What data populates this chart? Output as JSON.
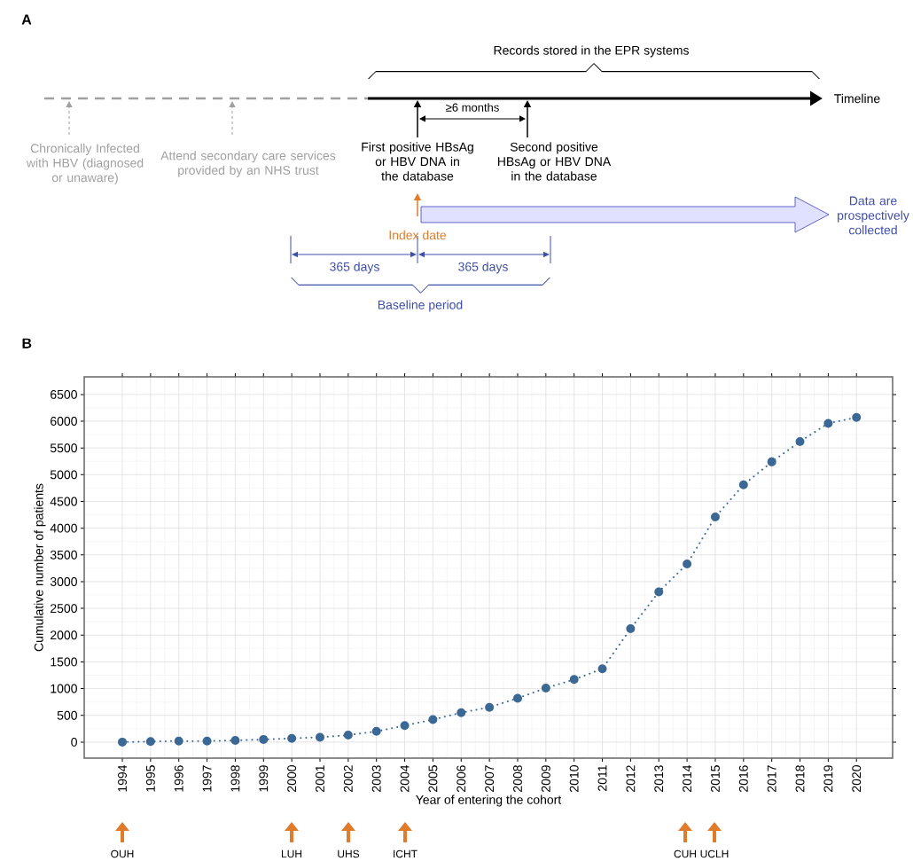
{
  "chart_data": [
    {
      "type": "other",
      "title": "A",
      "annotations": [
        "Records stored in the EPR systems",
        "Timeline",
        "≥6 months",
        "Chronically Infected with HBV (diagnosed or unaware)",
        "Attend secondary care services provided by an NHS trust",
        "First positive HBsAg or HBV DNA in the database",
        "Second positive HBsAg or HBV DNA in the database",
        "Index date",
        "Data are prospectively collected",
        "365 days",
        "365 days",
        "Baseline period"
      ]
    },
    {
      "type": "line",
      "title": "B",
      "xlabel": "Year of entering the cohort",
      "ylabel": "Cumulative number of patients",
      "x": [
        1994,
        1995,
        1996,
        1997,
        1998,
        1999,
        2000,
        2001,
        2002,
        2003,
        2004,
        2005,
        2006,
        2007,
        2008,
        2009,
        2010,
        2011,
        2012,
        2013,
        2014,
        2015,
        2016,
        2017,
        2018,
        2019,
        2020
      ],
      "values": [
        0,
        10,
        20,
        20,
        30,
        50,
        70,
        90,
        130,
        200,
        310,
        420,
        550,
        650,
        820,
        1010,
        1170,
        1370,
        2120,
        2810,
        3330,
        4210,
        4810,
        5240,
        5620,
        5960,
        6070
      ],
      "color": "#3b6894",
      "marker": "circle",
      "line_style": "dotted",
      "grid": true,
      "xlim": [
        1992.65,
        2021.28
      ],
      "ylim": [
        -300,
        6830
      ],
      "xticks": [
        1994,
        1995,
        1996,
        1997,
        1998,
        1999,
        2000,
        2001,
        2002,
        2003,
        2004,
        2005,
        2006,
        2007,
        2008,
        2009,
        2010,
        2011,
        2012,
        2013,
        2014,
        2015,
        2016,
        2017,
        2018,
        2019,
        2020
      ],
      "yticks": [
        0,
        500,
        1000,
        1500,
        2000,
        2500,
        3000,
        3500,
        4000,
        4500,
        5000,
        5500,
        6000,
        6500
      ],
      "annotations": [
        "OUH",
        "LUH",
        "UHS",
        "ICHT",
        "CUH",
        "UCLH"
      ]
    }
  ]
}
